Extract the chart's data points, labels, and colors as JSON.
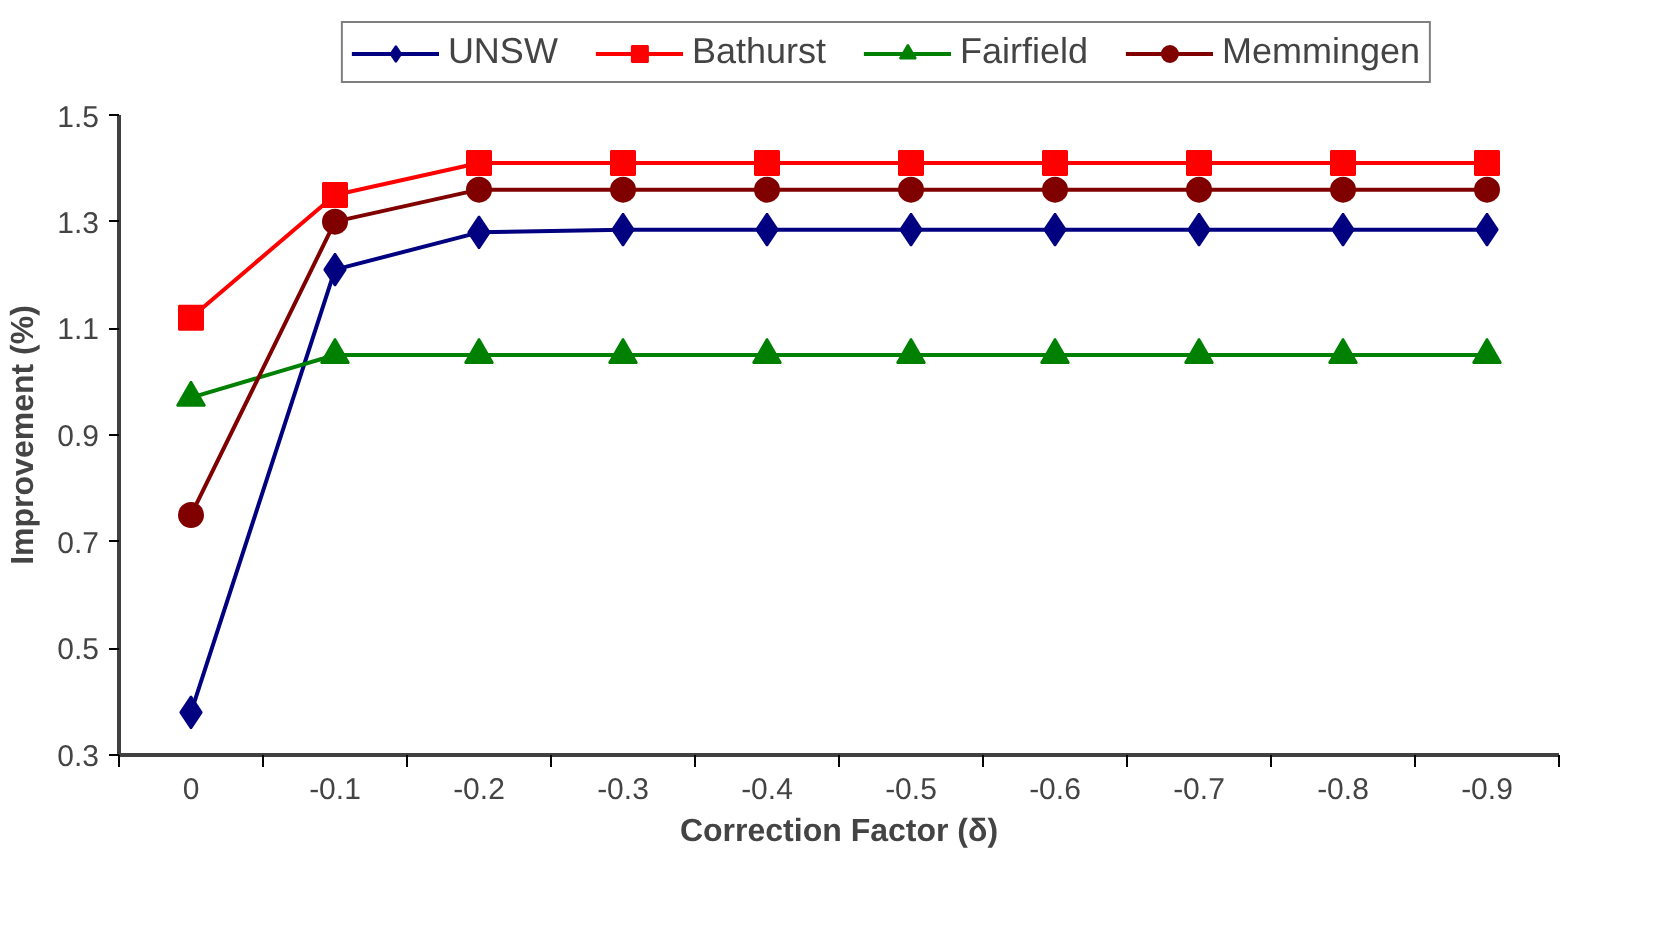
{
  "chart_data": {
    "type": "line",
    "xlabel": "Correction Factor (δ)",
    "ylabel": "Improvement (%)",
    "categories": [
      "0",
      "-0.1",
      "-0.2",
      "-0.3",
      "-0.4",
      "-0.5",
      "-0.6",
      "-0.7",
      "-0.8",
      "-0.9"
    ],
    "ylim": [
      0.3,
      1.5
    ],
    "yticks": [
      {
        "value": 0.3,
        "label": "0.3"
      },
      {
        "value": 0.5,
        "label": "0.5"
      },
      {
        "value": 0.7,
        "label": "0.7"
      },
      {
        "value": 0.9,
        "label": "0.9"
      },
      {
        "value": 1.1,
        "label": "1.1"
      },
      {
        "value": 1.3,
        "label": "1.3"
      },
      {
        "value": 1.5,
        "label": "1.5"
      }
    ],
    "grid": false,
    "legend": "top",
    "line_style": "solid",
    "series": [
      {
        "name": "UNSW",
        "color": "#000080",
        "marker": "diamond",
        "values": [
          0.38,
          1.21,
          1.28,
          1.285,
          1.285,
          1.285,
          1.285,
          1.285,
          1.285,
          1.285
        ]
      },
      {
        "name": "Bathurst",
        "color": "#ff0000",
        "marker": "square",
        "values": [
          1.12,
          1.35,
          1.41,
          1.41,
          1.41,
          1.41,
          1.41,
          1.41,
          1.41,
          1.41
        ]
      },
      {
        "name": "Fairfield",
        "color": "#008000",
        "marker": "triangle",
        "values": [
          0.97,
          1.05,
          1.05,
          1.05,
          1.05,
          1.05,
          1.05,
          1.05,
          1.05,
          1.05
        ]
      },
      {
        "name": "Memmingen",
        "color": "#800000",
        "marker": "circle",
        "values": [
          0.75,
          1.3,
          1.36,
          1.36,
          1.36,
          1.36,
          1.36,
          1.36,
          1.36,
          1.36
        ]
      }
    ]
  }
}
